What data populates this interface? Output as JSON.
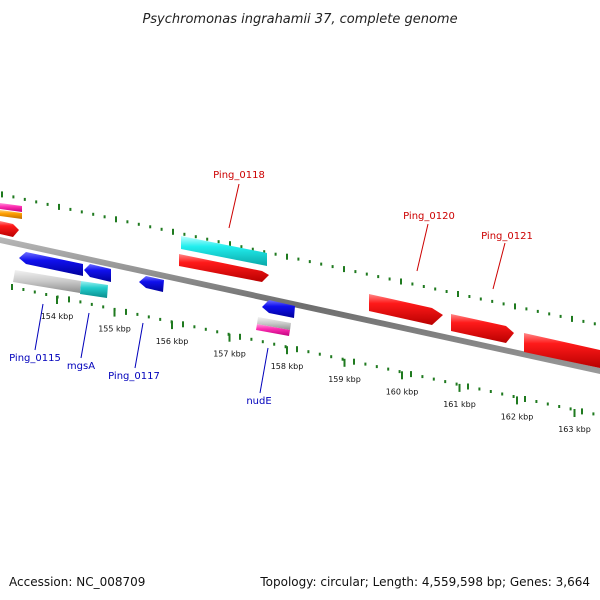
{
  "title": "Psychromonas ingrahamii 37, complete genome",
  "footer": {
    "accession": "Accession: NC_008709",
    "summary": "Topology: circular; Length: 4,559,598 bp; Genes: 3,664"
  },
  "colors": {
    "backbone": "#7a7a7a",
    "tick": "#1f7a1f",
    "top_label": "#cc0000",
    "bottom_label": "#0000bb"
  },
  "ticks": [
    {
      "kbp": 154,
      "label": "154 kbp"
    },
    {
      "kbp": 155,
      "label": "155 kbp"
    },
    {
      "kbp": 156,
      "label": "156 kbp"
    },
    {
      "kbp": 157,
      "label": "157 kbp"
    },
    {
      "kbp": 158,
      "label": "158 kbp"
    },
    {
      "kbp": 159,
      "label": "159 kbp"
    },
    {
      "kbp": 160,
      "label": "160 kbp"
    },
    {
      "kbp": 161,
      "label": "161 kbp"
    },
    {
      "kbp": 162,
      "label": "162 kbp"
    },
    {
      "kbp": 163,
      "label": "163 kbp"
    }
  ],
  "gene_labels": [
    {
      "text": "Ping_0118",
      "strand": "top"
    },
    {
      "text": "Ping_0120",
      "strand": "top"
    },
    {
      "text": "Ping_0121",
      "strand": "top"
    },
    {
      "text": "Ping_0115",
      "strand": "bottom"
    },
    {
      "text": "mgsA",
      "strand": "bottom"
    },
    {
      "text": "Ping_0117",
      "strand": "bottom"
    },
    {
      "text": "nudE",
      "strand": "bottom"
    }
  ]
}
